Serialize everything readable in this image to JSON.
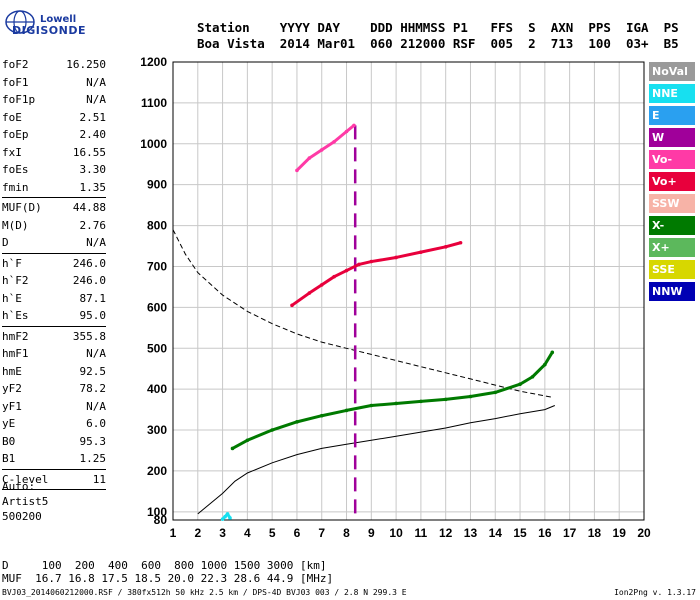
{
  "logo": {
    "brand": "Lowell",
    "product": "DIGISONDE"
  },
  "header": {
    "line1": "Station    YYYY DAY    DDD HHMMSS P1   FFS  S  AXN  PPS  IGA  PS",
    "line2": "Boa Vista  2014 Mar01  060 212000 RSF  005  2  713  100  03+  B5"
  },
  "params": [
    {
      "k": "foF2",
      "v": "16.250"
    },
    {
      "k": "foF1",
      "v": "N/A"
    },
    {
      "k": "foF1p",
      "v": "N/A"
    },
    {
      "k": "foE",
      "v": "2.51"
    },
    {
      "k": "foEp",
      "v": "2.40"
    },
    {
      "k": "fxI",
      "v": "16.55"
    },
    {
      "k": "foEs",
      "v": "3.30"
    },
    {
      "k": "fmin",
      "v": "1.35"
    },
    {
      "sep": true
    },
    {
      "k": "MUF(D)",
      "v": "44.88"
    },
    {
      "k": "M(D)",
      "v": "2.76"
    },
    {
      "k": "D",
      "v": "N/A"
    },
    {
      "sep": true
    },
    {
      "k": "h`F",
      "v": "246.0"
    },
    {
      "k": "h`F2",
      "v": "246.0"
    },
    {
      "k": "h`E",
      "v": "87.1"
    },
    {
      "k": "h`Es",
      "v": "95.0"
    },
    {
      "sep": true
    },
    {
      "k": "hmF2",
      "v": "355.8"
    },
    {
      "k": "hmF1",
      "v": "N/A"
    },
    {
      "k": "hmE",
      "v": "92.5"
    },
    {
      "k": "yF2",
      "v": "78.2"
    },
    {
      "k": "yF1",
      "v": "N/A"
    },
    {
      "k": "yE",
      "v": "6.0"
    },
    {
      "k": "B0",
      "v": "95.3"
    },
    {
      "k": "B1",
      "v": "1.25"
    },
    {
      "sep": true
    },
    {
      "k": "C-level",
      "v": "11"
    },
    {
      "sep": true
    }
  ],
  "auto": [
    "Auto:",
    "Artist5",
    "500200"
  ],
  "legend": [
    {
      "label": "NoVal",
      "color": "#9a9a9a"
    },
    {
      "label": "NNE",
      "color": "#17e0f0"
    },
    {
      "label": "E",
      "color": "#2aa0f0"
    },
    {
      "label": "W",
      "color": "#a0009a"
    },
    {
      "label": "Vo-",
      "color": "#ff3aa6"
    },
    {
      "label": "Vo+",
      "color": "#e8003c"
    },
    {
      "label": "SSW",
      "color": "#f7b3a7"
    },
    {
      "label": "X-",
      "color": "#007a00"
    },
    {
      "label": "X+",
      "color": "#5cb85c"
    },
    {
      "label": "SSE",
      "color": "#d7d700"
    },
    {
      "label": "NNW",
      "color": "#0000b4"
    }
  ],
  "table": {
    "line1": "D     100  200  400  600  800 1000 1500 3000 [km]",
    "line2": "MUF  16.7 16.8 17.5 18.5 20.0 22.3 28.6 44.9 [MHz]"
  },
  "footer": {
    "left": "BVJ03_2014060212000.RSF / 380fx512h 50 kHz 2.5 km / DPS-4D BVJ03 003 / 2.8 N 299.3 E",
    "right": "Ion2Png v. 1.3.17"
  },
  "chart_data": {
    "type": "scatter",
    "xlim": [
      1,
      20
    ],
    "ylim": [
      80,
      1200
    ],
    "x_ticks": [
      1,
      2,
      3,
      4,
      5,
      6,
      7,
      8,
      9,
      10,
      11,
      12,
      13,
      14,
      15,
      16,
      17,
      18,
      19,
      20
    ],
    "y_ticks": [
      80,
      100,
      200,
      300,
      400,
      500,
      600,
      700,
      800,
      900,
      1000,
      1100,
      1200
    ],
    "grid": true,
    "series": [
      {
        "name": "X-",
        "color": "#007a00",
        "x": [
          3.4,
          4,
          5,
          6,
          7,
          8,
          9,
          10,
          11,
          12,
          13,
          14,
          15,
          15.5,
          16,
          16.3
        ],
        "y": [
          255,
          275,
          300,
          320,
          335,
          348,
          360,
          365,
          370,
          375,
          382,
          392,
          412,
          430,
          460,
          490
        ]
      },
      {
        "name": "Vo+",
        "color": "#e8003c",
        "x": [
          5.8,
          6.5,
          7,
          7.5,
          8,
          8.5,
          9,
          10,
          11,
          12,
          12.6
        ],
        "y": [
          605,
          635,
          655,
          675,
          690,
          705,
          712,
          722,
          735,
          748,
          758
        ]
      },
      {
        "name": "Vo-",
        "color": "#ff3aa6",
        "x": [
          6,
          6.5,
          7,
          7.5,
          8,
          8.3
        ],
        "y": [
          935,
          965,
          985,
          1005,
          1030,
          1045
        ]
      },
      {
        "name": "NNE",
        "color": "#17e0f0",
        "x": [
          3.0,
          3.1,
          3.2,
          3.3
        ],
        "y": [
          82,
          88,
          95,
          85
        ]
      }
    ],
    "profile_dashed": {
      "x": [
        1,
        1.5,
        2,
        3,
        4,
        5,
        6,
        7,
        8,
        9,
        10,
        11,
        12,
        13,
        14,
        15,
        16.3
      ],
      "y": [
        790,
        730,
        685,
        630,
        590,
        560,
        535,
        515,
        500,
        485,
        470,
        455,
        440,
        425,
        410,
        395,
        380
      ]
    },
    "profile_solid": {
      "x": [
        2,
        2.5,
        3,
        3.5,
        4,
        5,
        6,
        7,
        8,
        9,
        10,
        11,
        12,
        13,
        14,
        15,
        16,
        16.4
      ],
      "y": [
        95,
        120,
        145,
        175,
        195,
        220,
        240,
        255,
        265,
        275,
        285,
        295,
        305,
        318,
        328,
        340,
        350,
        360
      ]
    }
  }
}
